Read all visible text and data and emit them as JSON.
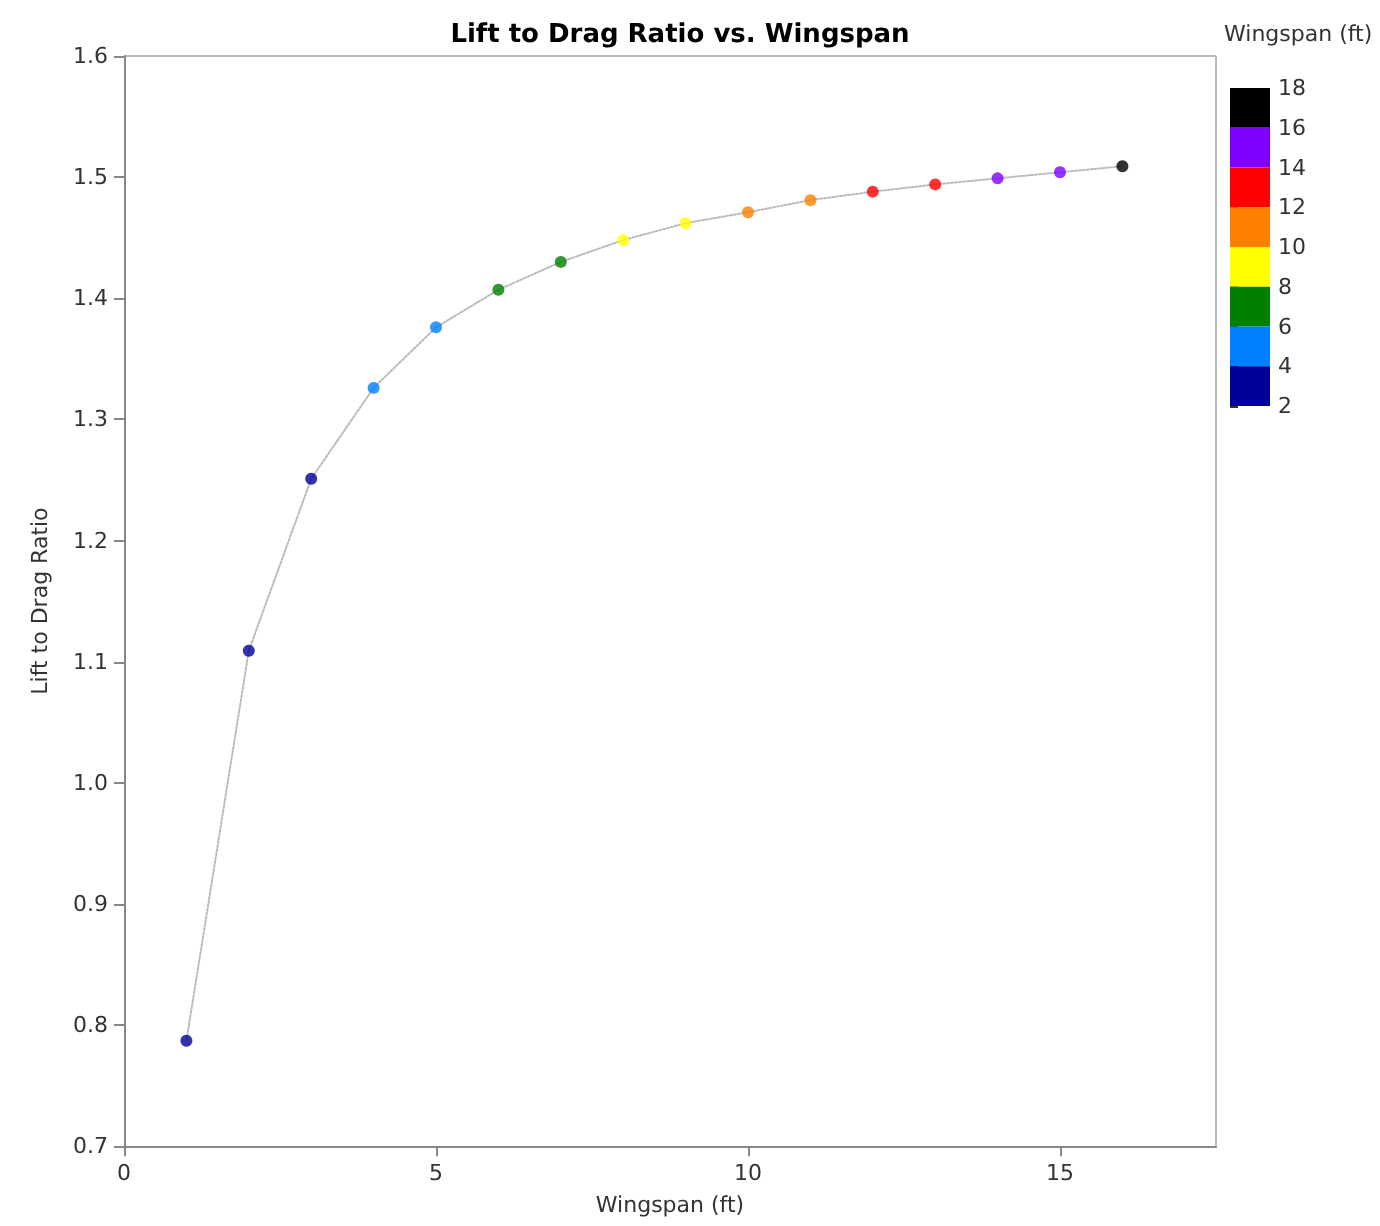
{
  "chart_data": {
    "type": "scatter",
    "title": "Lift to Drag Ratio vs. Wingspan",
    "xlabel": "Wingspan (ft)",
    "ylabel": "Lift to Drag Ratio",
    "clabel": "Wingspan (ft)",
    "x": [
      1,
      2,
      3,
      4,
      5,
      6,
      7,
      8,
      9,
      10,
      11,
      12,
      13,
      14,
      15,
      16
    ],
    "series": [
      {
        "type": "line",
        "color": "#bbbbbb",
        "line_style": "dotted",
        "marker": "none",
        "x": [
          1,
          2,
          3,
          4,
          5,
          6,
          7,
          8,
          9,
          10,
          11,
          12,
          13,
          14,
          15,
          16
        ],
        "values": [
          0.787,
          1.109,
          1.251,
          1.326,
          1.376,
          1.407,
          1.43,
          1.448,
          1.462,
          1.471,
          1.481,
          1.488,
          1.494,
          1.499,
          1.504,
          1.509
        ]
      },
      {
        "type": "scatter",
        "marker": "circle",
        "values": [
          0.787,
          1.109,
          1.251,
          1.326,
          1.376,
          1.407,
          1.43,
          1.448,
          1.462,
          1.471,
          1.481,
          1.488,
          1.494,
          1.499,
          1.504,
          1.509
        ],
        "colors": [
          "#000099",
          "#000099",
          "#000099",
          "#0080ff",
          "#0080ff",
          "#008000",
          "#008000",
          "#ffff00",
          "#ffff00",
          "#ff8000",
          "#ff8000",
          "#ff0000",
          "#ff0000",
          "#8000ff",
          "#8000ff",
          "#000000"
        ]
      }
    ],
    "xlim": [
      0,
      17.5
    ],
    "xticks": [
      0,
      5,
      10,
      15
    ],
    "ylim": [
      0.7,
      1.6
    ],
    "yticks": [
      {
        "value": 0.7,
        "label": "0.7"
      },
      {
        "value": 0.8,
        "label": "0.8"
      },
      {
        "value": 0.9,
        "label": "0.9"
      },
      {
        "value": 1.0,
        "label": "1.0"
      },
      {
        "value": 1.1,
        "label": "1.1"
      },
      {
        "value": 1.2,
        "label": "1.2"
      },
      {
        "value": 1.3,
        "label": "1.3"
      },
      {
        "value": 1.4,
        "label": "1.4"
      },
      {
        "value": 1.5,
        "label": "1.5"
      },
      {
        "value": 1.6,
        "label": "1.6"
      }
    ],
    "clim": [
      2,
      18
    ],
    "cticks": [
      2,
      4,
      6,
      8,
      10,
      12,
      14,
      16,
      18
    ],
    "grid": false
  }
}
